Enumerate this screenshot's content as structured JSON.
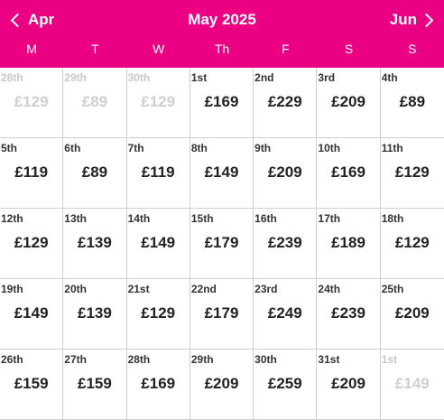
{
  "header": {
    "prev_label": "Apr",
    "title": "May 2025",
    "next_label": "Jun",
    "color": "#ec0083"
  },
  "weekdays": [
    "M",
    "T",
    "W",
    "Th",
    "F",
    "S",
    "S"
  ],
  "days": [
    {
      "date": "28th",
      "price": "£129",
      "outside": true
    },
    {
      "date": "29th",
      "price": "£89",
      "outside": true
    },
    {
      "date": "30th",
      "price": "£129",
      "outside": true
    },
    {
      "date": "1st",
      "price": "£169",
      "outside": false
    },
    {
      "date": "2nd",
      "price": "£229",
      "outside": false
    },
    {
      "date": "3rd",
      "price": "£209",
      "outside": false
    },
    {
      "date": "4th",
      "price": "£89",
      "outside": false
    },
    {
      "date": "5th",
      "price": "£119",
      "outside": false
    },
    {
      "date": "6th",
      "price": "£89",
      "outside": false
    },
    {
      "date": "7th",
      "price": "£119",
      "outside": false
    },
    {
      "date": "8th",
      "price": "£149",
      "outside": false
    },
    {
      "date": "9th",
      "price": "£209",
      "outside": false
    },
    {
      "date": "10th",
      "price": "£169",
      "outside": false
    },
    {
      "date": "11th",
      "price": "£129",
      "outside": false
    },
    {
      "date": "12th",
      "price": "£129",
      "outside": false
    },
    {
      "date": "13th",
      "price": "£139",
      "outside": false
    },
    {
      "date": "14th",
      "price": "£149",
      "outside": false
    },
    {
      "date": "15th",
      "price": "£179",
      "outside": false
    },
    {
      "date": "16th",
      "price": "£239",
      "outside": false
    },
    {
      "date": "17th",
      "price": "£189",
      "outside": false
    },
    {
      "date": "18th",
      "price": "£129",
      "outside": false
    },
    {
      "date": "19th",
      "price": "£149",
      "outside": false
    },
    {
      "date": "20th",
      "price": "£139",
      "outside": false
    },
    {
      "date": "21st",
      "price": "£129",
      "outside": false
    },
    {
      "date": "22nd",
      "price": "£179",
      "outside": false
    },
    {
      "date": "23rd",
      "price": "£249",
      "outside": false
    },
    {
      "date": "24th",
      "price": "£239",
      "outside": false
    },
    {
      "date": "25th",
      "price": "£209",
      "outside": false
    },
    {
      "date": "26th",
      "price": "£159",
      "outside": false
    },
    {
      "date": "27th",
      "price": "£159",
      "outside": false
    },
    {
      "date": "28th",
      "price": "£169",
      "outside": false
    },
    {
      "date": "29th",
      "price": "£209",
      "outside": false
    },
    {
      "date": "30th",
      "price": "£259",
      "outside": false
    },
    {
      "date": "31st",
      "price": "£209",
      "outside": false
    },
    {
      "date": "1st",
      "price": "£149",
      "outside": true
    }
  ]
}
